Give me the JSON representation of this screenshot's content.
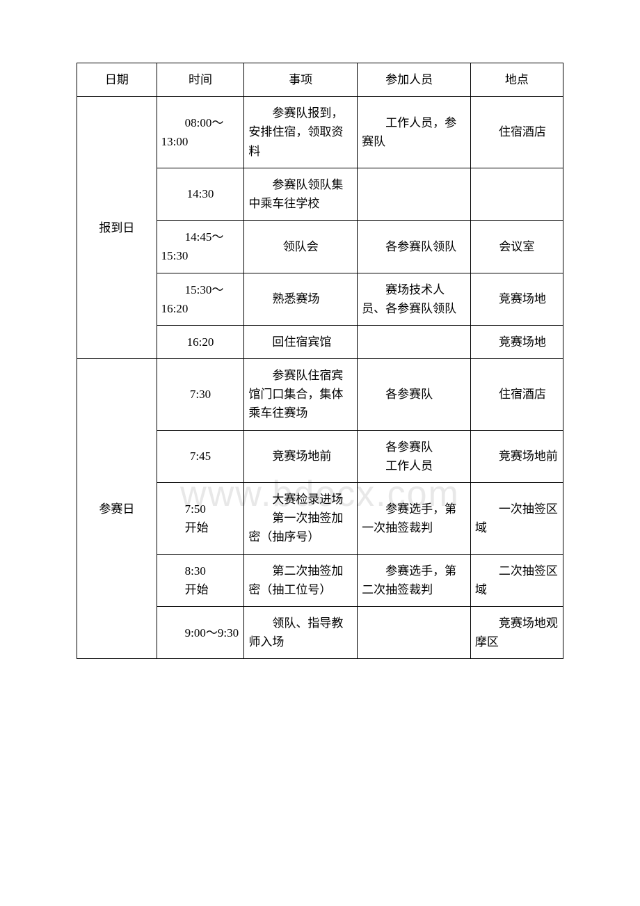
{
  "watermark": "www.bdocx.com",
  "table": {
    "headers": {
      "date": "日期",
      "time": "时间",
      "item": "事项",
      "people": "参加人员",
      "place": "地点"
    },
    "body": {
      "day1": {
        "label": "报到日",
        "rows": [
          {
            "time": "08:00～13:00",
            "item": "参赛队报到，安排住宿，领取资料",
            "people": "工作人员，参赛队",
            "place": "住宿酒店"
          },
          {
            "time": "14:30",
            "item": "参赛队领队集中乘车往学校",
            "people": "",
            "place": ""
          },
          {
            "time": "14:45～15:30",
            "item": "领队会",
            "people": "各参赛队领队",
            "place": "会议室"
          },
          {
            "time": "15:30～16:20",
            "item": "熟悉赛场",
            "people": "赛场技术人员、各参赛队领队",
            "place": "竞赛场地"
          },
          {
            "time": "16:20",
            "item": "回住宿宾馆",
            "people": "",
            "place": "竞赛场地"
          }
        ]
      },
      "day2": {
        "label": "参赛日",
        "rows": [
          {
            "time": "7:30",
            "item": "参赛队住宿宾馆门口集合，集体乘车往赛场",
            "people": "各参赛队",
            "place": "住宿酒店"
          },
          {
            "time": "7:45",
            "item": "竞赛场地前",
            "people_a": "各参赛队",
            "people_b": "工作人员",
            "place": "竞赛场地前"
          },
          {
            "time_a": "7:50",
            "time_b": "开始",
            "item_a": "大赛检录进场",
            "item_b": "第一次抽签加密（抽序号）",
            "people": "参赛选手，第一次抽签裁判",
            "place": "一次抽签区域"
          },
          {
            "time_a": "8:30",
            "time_b": "开始",
            "item": "第二次抽签加密（抽工位号）",
            "people": "参赛选手，第二次抽签裁判",
            "place": "二次抽签区域"
          },
          {
            "time": "9:00～9:30",
            "item": "领队、指导教师入场",
            "people": "",
            "place": "竞赛场地观摩区"
          }
        ]
      }
    }
  }
}
